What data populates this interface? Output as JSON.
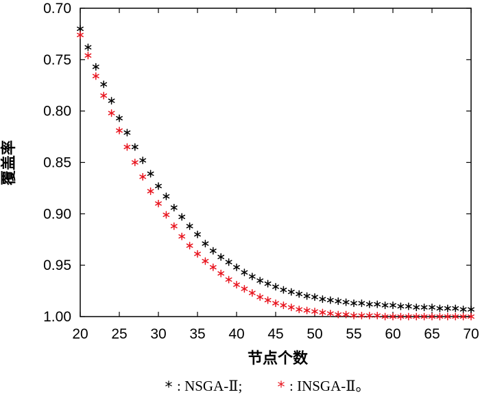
{
  "chart_data": {
    "type": "scatter",
    "xlabel": "节点个数",
    "ylabel": "覆盖率",
    "xlim": [
      20,
      70
    ],
    "ylim": [
      0.7,
      1.0
    ],
    "y_axis_inverted": true,
    "x_ticks": [
      "20",
      "25",
      "30",
      "35",
      "40",
      "45",
      "50",
      "55",
      "60",
      "65",
      "70"
    ],
    "y_ticks": [
      "0.70",
      "0.75",
      "0.80",
      "0.85",
      "0.90",
      "0.95",
      "1.00"
    ],
    "marker": "*",
    "legend": {
      "placement": "bottom",
      "items": [
        {
          "marker": "*",
          "text": ": NSGA-Ⅱ;",
          "color": "#000000"
        },
        {
          "marker": "*",
          "text": ": INSGA-Ⅱ。",
          "color": "#e8141e"
        }
      ]
    },
    "series": [
      {
        "color": "#000000",
        "x": [
          20,
          21,
          22,
          23,
          24,
          25,
          26,
          27,
          28,
          29,
          30,
          31,
          32,
          33,
          34,
          35,
          36,
          37,
          38,
          39,
          40,
          41,
          42,
          43,
          44,
          45,
          46,
          47,
          48,
          49,
          50,
          51,
          52,
          53,
          54,
          55,
          56,
          57,
          58,
          59,
          60,
          61,
          62,
          63,
          64,
          65,
          66,
          67,
          68,
          69,
          70
        ],
        "y": [
          0.72,
          0.738,
          0.757,
          0.774,
          0.79,
          0.807,
          0.821,
          0.835,
          0.848,
          0.861,
          0.873,
          0.883,
          0.894,
          0.903,
          0.912,
          0.92,
          0.929,
          0.936,
          0.942,
          0.947,
          0.952,
          0.957,
          0.961,
          0.965,
          0.968,
          0.971,
          0.974,
          0.976,
          0.978,
          0.98,
          0.981,
          0.983,
          0.984,
          0.985,
          0.986,
          0.987,
          0.987,
          0.988,
          0.988,
          0.989,
          0.989,
          0.99,
          0.99,
          0.991,
          0.991,
          0.991,
          0.992,
          0.992,
          0.992,
          0.993,
          0.993
        ]
      },
      {
        "color": "#e8141e",
        "x": [
          20,
          21,
          22,
          23,
          24,
          25,
          26,
          27,
          28,
          29,
          30,
          31,
          32,
          33,
          34,
          35,
          36,
          37,
          38,
          39,
          40,
          41,
          42,
          43,
          44,
          45,
          46,
          47,
          48,
          49,
          50,
          51,
          52,
          53,
          54,
          55,
          56,
          57,
          58,
          59,
          60,
          61,
          62,
          63,
          64,
          65,
          66,
          67,
          68,
          69,
          70
        ],
        "y": [
          0.726,
          0.746,
          0.766,
          0.785,
          0.802,
          0.819,
          0.835,
          0.85,
          0.864,
          0.878,
          0.89,
          0.901,
          0.912,
          0.922,
          0.931,
          0.939,
          0.946,
          0.952,
          0.958,
          0.964,
          0.969,
          0.973,
          0.977,
          0.981,
          0.984,
          0.987,
          0.989,
          0.991,
          0.993,
          0.994,
          0.995,
          0.996,
          0.997,
          0.998,
          0.998,
          0.999,
          0.999,
          0.999,
          0.999,
          1.0,
          1.0,
          1.0,
          1.0,
          1.0,
          1.0,
          1.0,
          1.0,
          1.0,
          1.0,
          1.0,
          1.0
        ]
      }
    ]
  }
}
